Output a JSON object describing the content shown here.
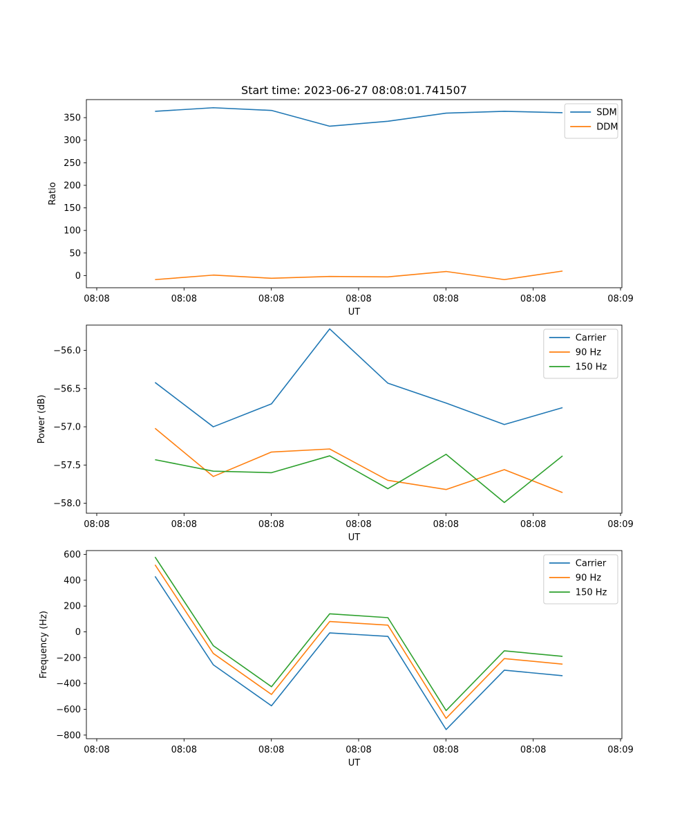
{
  "figure": {
    "title": "Start time: 2023-06-27 08:08:01.741507"
  },
  "chart_data": [
    {
      "type": "line",
      "title": "Start time: 2023-06-27 08:08:01.741507",
      "xlabel": "UT",
      "ylabel": "Ratio",
      "x_tick_labels": [
        "08:08",
        "08:08",
        "08:08",
        "08:08",
        "08:08",
        "08:08",
        "08:09"
      ],
      "y_ticks": [
        0,
        50,
        100,
        150,
        200,
        250,
        300,
        350
      ],
      "ylim": [
        -27,
        390
      ],
      "x": [
        1,
        2,
        3,
        4,
        5,
        6,
        7,
        8
      ],
      "xlim": [
        -0.18,
        9.02
      ],
      "series": [
        {
          "name": "SDM",
          "color": "#1f77b4",
          "values": [
            364,
            372,
            366,
            331,
            342,
            360,
            364,
            361
          ]
        },
        {
          "name": "DDM",
          "color": "#ff7f0e",
          "values": [
            -9,
            1,
            -6,
            -2,
            -3,
            9,
            -9,
            10
          ]
        }
      ],
      "legend": "top-right",
      "grid": false
    },
    {
      "type": "line",
      "title": "",
      "xlabel": "UT",
      "ylabel": "Power (dB)",
      "x_tick_labels": [
        "08:08",
        "08:08",
        "08:08",
        "08:08",
        "08:08",
        "08:08",
        "08:09"
      ],
      "y_ticks": [
        -58.0,
        -57.5,
        -57.0,
        -56.5,
        -56.0
      ],
      "y_tick_labels": [
        "−58.0",
        "−57.5",
        "−57.0",
        "−56.5",
        "−56.0"
      ],
      "ylim": [
        -58.13,
        -55.67
      ],
      "x": [
        1,
        2,
        3,
        4,
        5,
        6,
        7,
        8
      ],
      "xlim": [
        -0.18,
        9.02
      ],
      "series": [
        {
          "name": "Carrier",
          "color": "#1f77b4",
          "values": [
            -56.42,
            -57.0,
            -56.7,
            -55.72,
            -56.43,
            -56.69,
            -56.97,
            -56.75
          ]
        },
        {
          "name": "90 Hz",
          "color": "#ff7f0e",
          "values": [
            -57.02,
            -57.65,
            -57.33,
            -57.29,
            -57.7,
            -57.82,
            -57.56,
            -57.86
          ]
        },
        {
          "name": "150 Hz",
          "color": "#2ca02c",
          "values": [
            -57.43,
            -57.58,
            -57.6,
            -57.38,
            -57.81,
            -57.36,
            -57.99,
            -57.38
          ]
        }
      ],
      "legend": "top-right",
      "grid": false
    },
    {
      "type": "line",
      "title": "",
      "xlabel": "UT",
      "ylabel": "Frequency (Hz)",
      "x_tick_labels": [
        "08:08",
        "08:08",
        "08:08",
        "08:08",
        "08:08",
        "08:08",
        "08:09"
      ],
      "y_ticks": [
        -800,
        -600,
        -400,
        -200,
        0,
        200,
        400,
        600
      ],
      "y_tick_labels": [
        "−800",
        "−600",
        "−400",
        "−200",
        "0",
        "200",
        "400",
        "600"
      ],
      "ylim": [
        -828,
        630
      ],
      "x": [
        1,
        2,
        3,
        4,
        5,
        6,
        7,
        8
      ],
      "xlim": [
        -0.18,
        9.02
      ],
      "series": [
        {
          "name": "Carrier",
          "color": "#1f77b4",
          "values": [
            430,
            -255,
            -573,
            -8,
            -35,
            -757,
            -297,
            -340
          ]
        },
        {
          "name": "90 Hz",
          "color": "#ff7f0e",
          "values": [
            520,
            -167,
            -485,
            80,
            52,
            -670,
            -207,
            -250
          ]
        },
        {
          "name": "150 Hz",
          "color": "#2ca02c",
          "values": [
            580,
            -107,
            -425,
            140,
            110,
            -610,
            -147,
            -190
          ]
        }
      ],
      "legend": "top-right",
      "grid": false
    }
  ]
}
